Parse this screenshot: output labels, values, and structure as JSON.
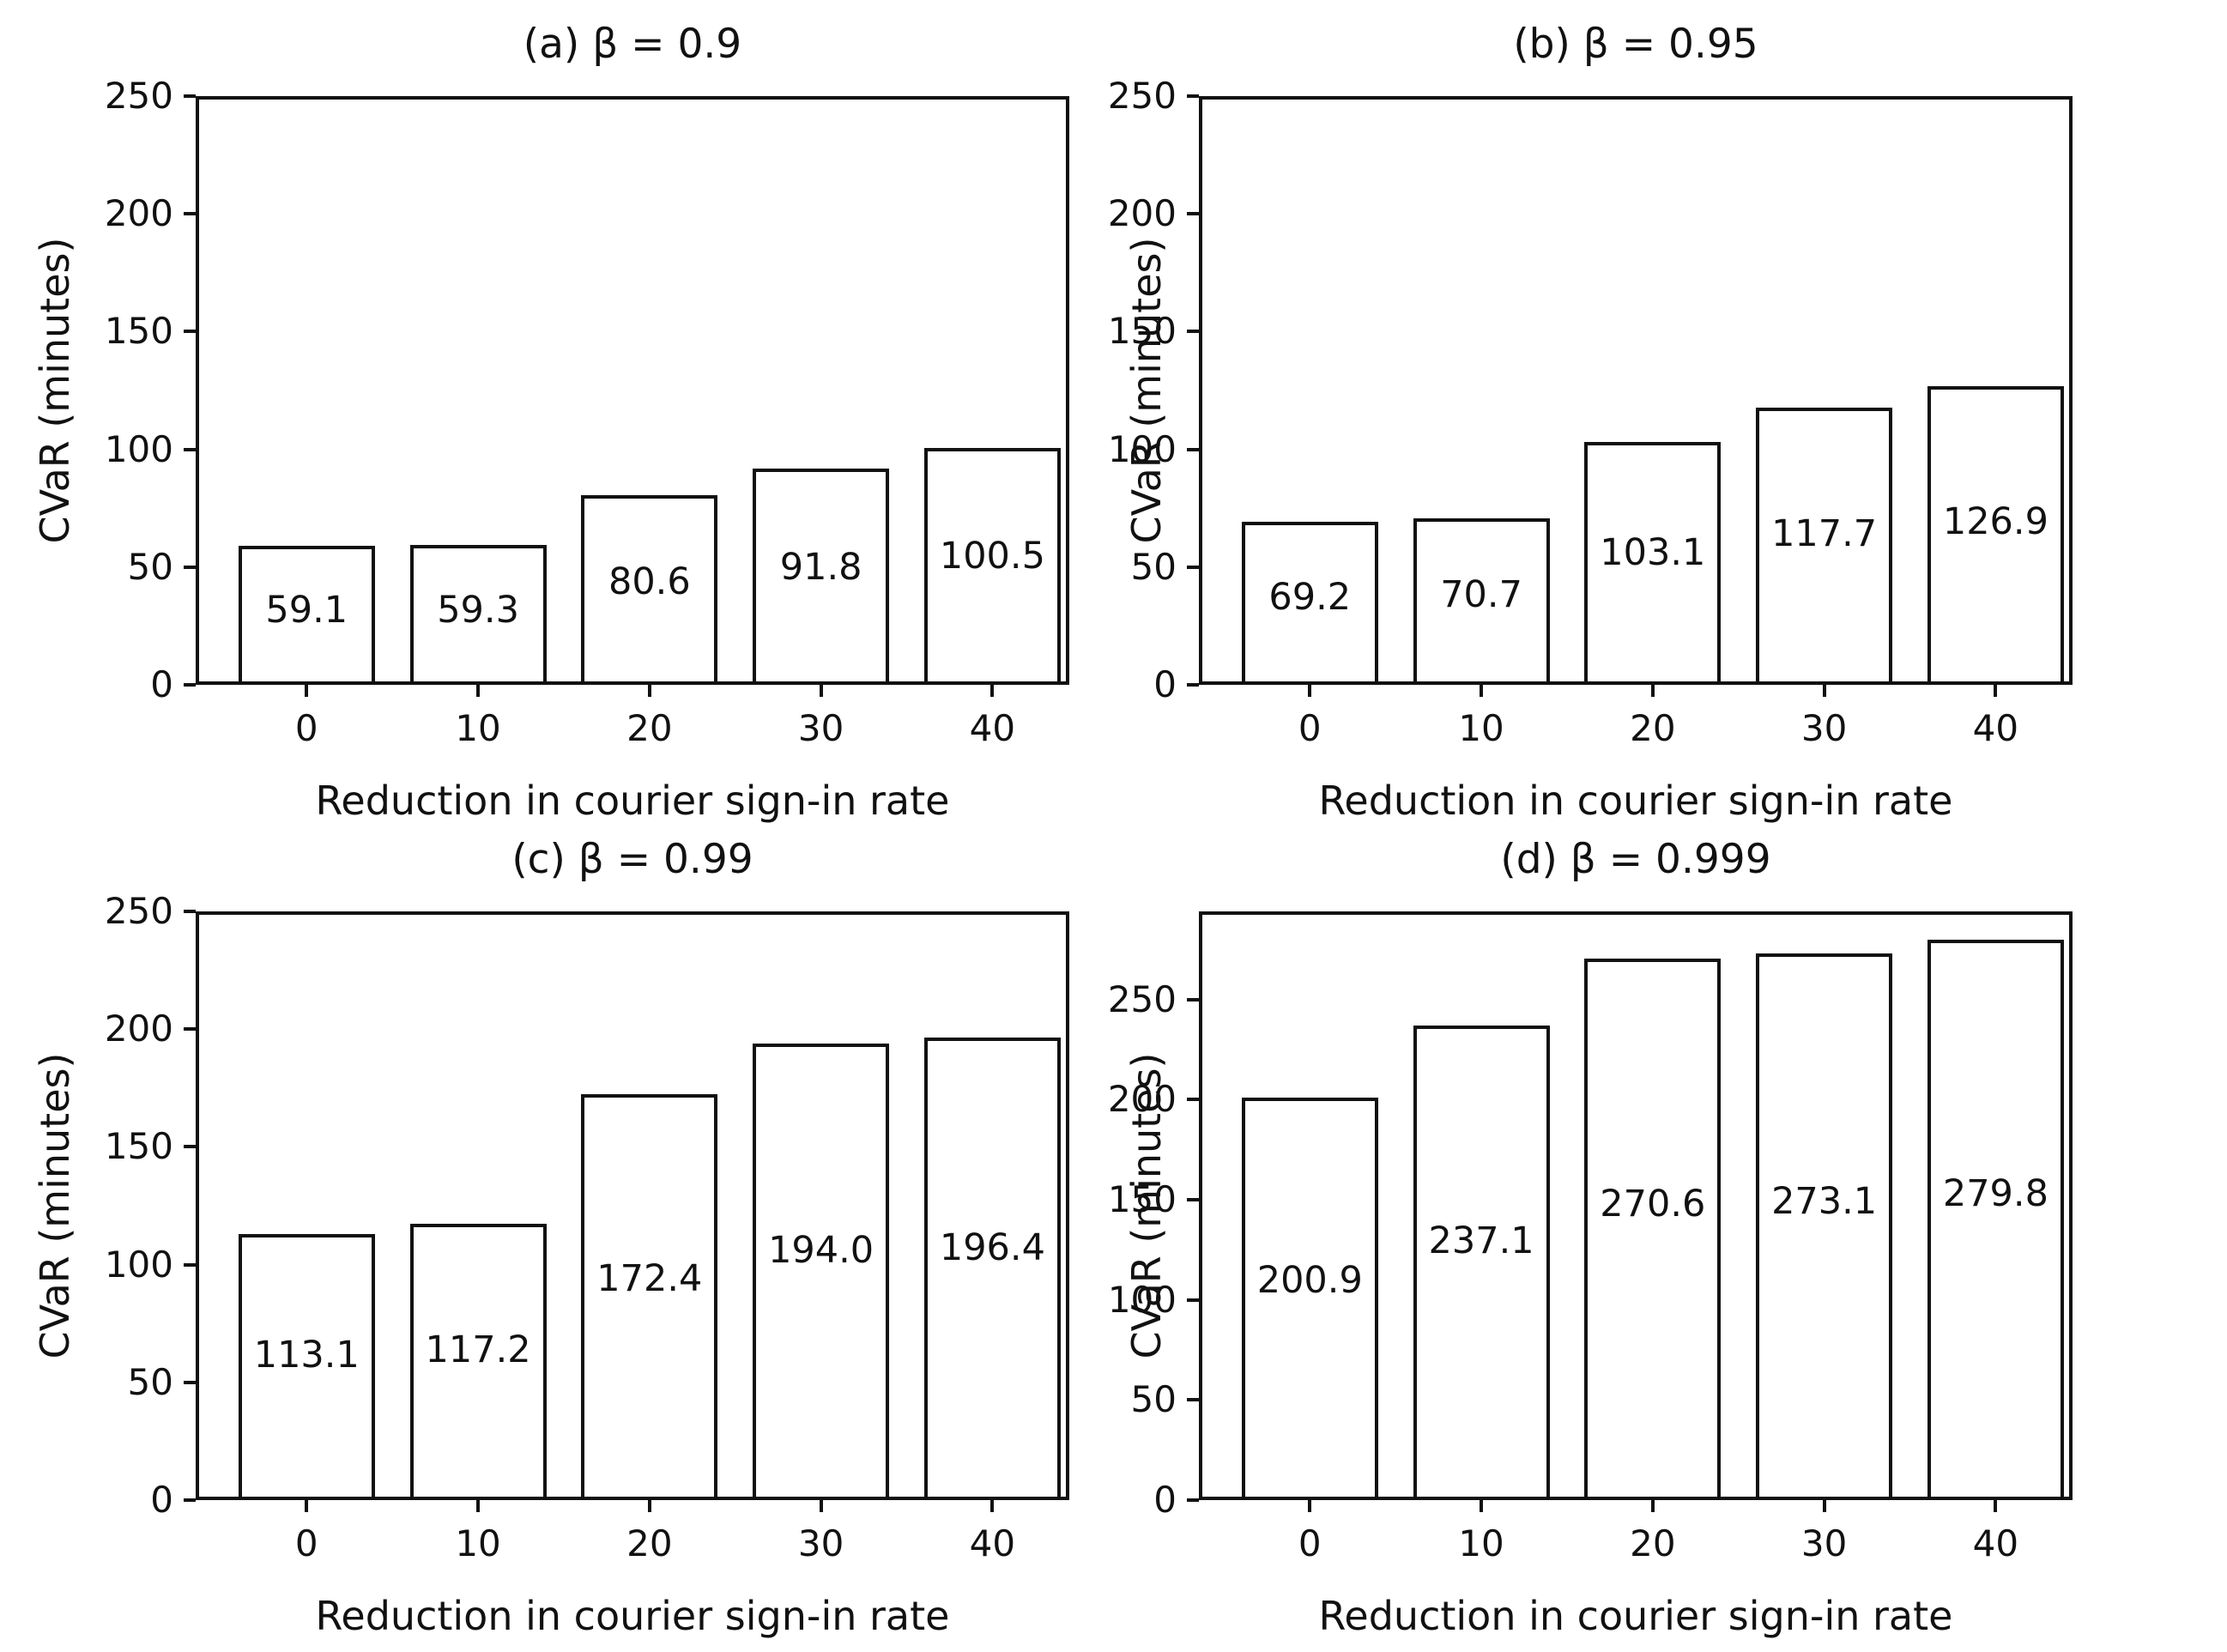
{
  "figure": {
    "background": "#ffffff",
    "text_color": "#111111",
    "bar_fill": "#ffffff",
    "bar_edge": "#111111"
  },
  "chart_data": [
    {
      "type": "bar",
      "panel": "a",
      "title": "(a) β = 0.9",
      "xlabel": "Reduction in courier sign-in rate",
      "ylabel": "CVaR (minutes)",
      "categories": [
        "0",
        "10",
        "20",
        "30",
        "40"
      ],
      "values": [
        59.1,
        59.3,
        80.6,
        91.8,
        100.5
      ],
      "bar_labels": [
        "59.1",
        "59.3",
        "80.6",
        "91.8",
        "100.5"
      ],
      "ylim": [
        0,
        250
      ],
      "yticks": [
        0,
        50,
        100,
        150,
        200,
        250
      ],
      "grid": false,
      "legend": "none"
    },
    {
      "type": "bar",
      "panel": "b",
      "title": "(b) β = 0.95",
      "xlabel": "Reduction in courier sign-in rate",
      "ylabel": "CVaR (minutes)",
      "categories": [
        "0",
        "10",
        "20",
        "30",
        "40"
      ],
      "values": [
        69.2,
        70.7,
        103.1,
        117.7,
        126.9
      ],
      "bar_labels": [
        "69.2",
        "70.7",
        "103.1",
        "117.7",
        "126.9"
      ],
      "ylim": [
        0,
        250
      ],
      "yticks": [
        0,
        50,
        100,
        150,
        200,
        250
      ],
      "grid": false,
      "legend": "none"
    },
    {
      "type": "bar",
      "panel": "c",
      "title": "(c) β = 0.99",
      "xlabel": "Reduction in courier sign-in rate",
      "ylabel": "CVaR (minutes)",
      "categories": [
        "0",
        "10",
        "20",
        "30",
        "40"
      ],
      "values": [
        113.1,
        117.2,
        172.4,
        194.0,
        196.4
      ],
      "bar_labels": [
        "113.1",
        "117.2",
        "172.4",
        "194.0",
        "196.4"
      ],
      "ylim": [
        0,
        250
      ],
      "yticks": [
        0,
        50,
        100,
        150,
        200,
        250
      ],
      "grid": false,
      "legend": "none"
    },
    {
      "type": "bar",
      "panel": "d",
      "title": "(d) β = 0.999",
      "xlabel": "Reduction in courier sign-in rate",
      "ylabel": "CVaR (minutes)",
      "categories": [
        "0",
        "10",
        "20",
        "30",
        "40"
      ],
      "values": [
        200.9,
        237.1,
        270.6,
        273.1,
        279.8
      ],
      "bar_labels": [
        "200.9",
        "237.1",
        "270.6",
        "273.1",
        "279.8"
      ],
      "ylim": [
        0,
        294
      ],
      "yticks": [
        0,
        50,
        100,
        150,
        200,
        250
      ],
      "grid": false,
      "legend": "none"
    }
  ]
}
